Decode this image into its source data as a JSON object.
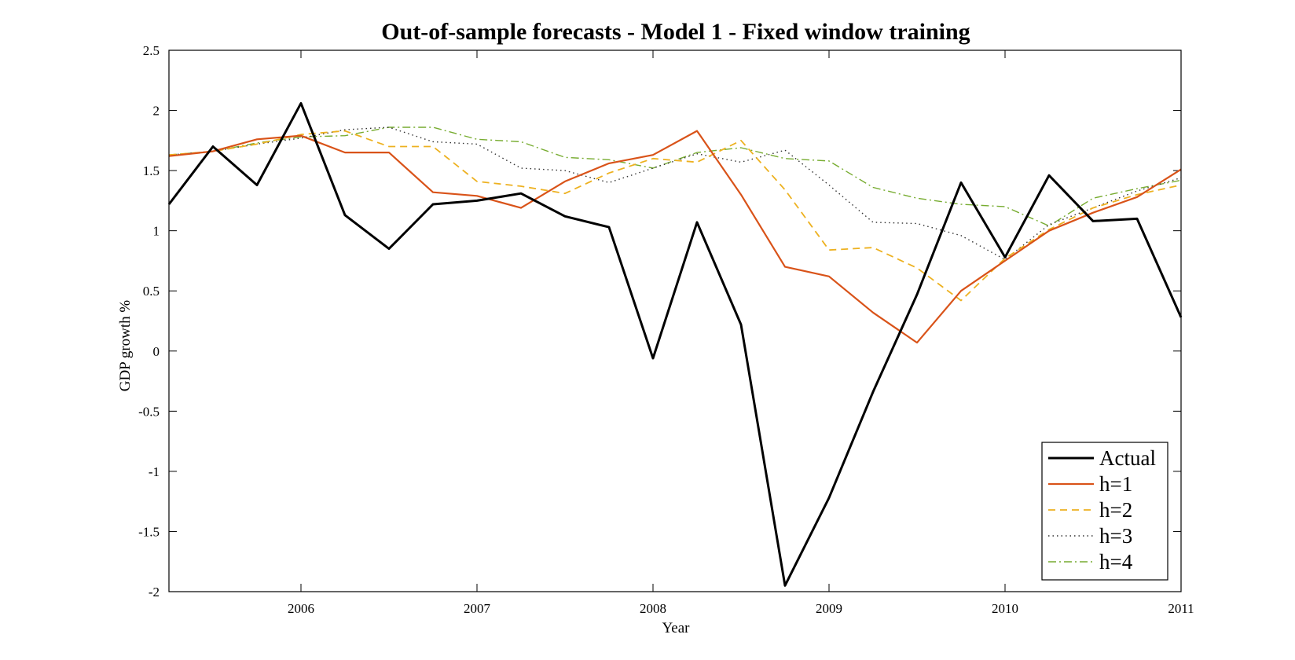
{
  "chart_data": {
    "type": "line",
    "title": "Out-of-sample forecasts - Model 1 - Fixed window training",
    "xlabel": "Year",
    "ylabel": "GDP growth %",
    "xlim": [
      2005.25,
      2011.0
    ],
    "ylim": [
      -2,
      2.5
    ],
    "x_ticks": [
      2006,
      2007,
      2008,
      2009,
      2010,
      2011
    ],
    "y_ticks": [
      -2,
      -1.5,
      -1,
      -0.5,
      0,
      0.5,
      1,
      1.5,
      2,
      2.5
    ],
    "grid": false,
    "legend_position": "bottom-right",
    "x": [
      2005.25,
      2005.5,
      2005.75,
      2006.0,
      2006.25,
      2006.5,
      2006.75,
      2007.0,
      2007.25,
      2007.5,
      2007.75,
      2008.0,
      2008.25,
      2008.5,
      2008.75,
      2009.0,
      2009.25,
      2009.5,
      2009.75,
      2010.0,
      2010.25,
      2010.5,
      2010.75,
      2011.0
    ],
    "series": [
      {
        "name": "Actual",
        "color": "#000000",
        "dash": "solid",
        "width": 3,
        "values": [
          1.22,
          1.7,
          1.38,
          2.06,
          1.13,
          0.85,
          1.22,
          1.25,
          1.31,
          1.12,
          1.03,
          -0.06,
          1.07,
          0.22,
          -1.95,
          -1.22,
          -0.34,
          0.47,
          1.4,
          0.78,
          1.46,
          1.08,
          1.1,
          0.28
        ]
      },
      {
        "name": "h=1",
        "color": "#d95319",
        "dash": "solid",
        "width": 2.2,
        "values": [
          1.62,
          1.66,
          1.76,
          1.79,
          1.65,
          1.65,
          1.32,
          1.29,
          1.19,
          1.41,
          1.56,
          1.63,
          1.83,
          1.3,
          0.7,
          0.62,
          0.32,
          0.07,
          0.5,
          0.75,
          1.0,
          1.15,
          1.28,
          1.51
        ]
      },
      {
        "name": "h=2",
        "color": "#edb120",
        "dash": "dashed",
        "width": 1.8,
        "values": [
          1.63,
          1.66,
          1.72,
          1.8,
          1.83,
          1.7,
          1.7,
          1.41,
          1.37,
          1.31,
          1.48,
          1.6,
          1.57,
          1.75,
          1.34,
          0.84,
          0.86,
          0.69,
          0.42,
          0.77,
          1.01,
          1.19,
          1.3,
          1.38
        ]
      },
      {
        "name": "h=3",
        "color": "#333333",
        "dash": "dotted",
        "width": 1.4,
        "values": [
          1.63,
          1.66,
          1.72,
          1.77,
          1.84,
          1.86,
          1.74,
          1.72,
          1.52,
          1.5,
          1.4,
          1.52,
          1.64,
          1.57,
          1.67,
          1.38,
          1.07,
          1.06,
          0.96,
          0.76,
          1.05,
          1.19,
          1.33,
          1.44
        ]
      },
      {
        "name": "h=4",
        "color": "#77ac30",
        "dash": "dashdot",
        "width": 1.4,
        "values": [
          1.63,
          1.66,
          1.73,
          1.78,
          1.79,
          1.86,
          1.86,
          1.76,
          1.74,
          1.61,
          1.59,
          1.52,
          1.65,
          1.69,
          1.6,
          1.58,
          1.36,
          1.27,
          1.22,
          1.2,
          1.04,
          1.27,
          1.35,
          1.42
        ]
      }
    ]
  }
}
